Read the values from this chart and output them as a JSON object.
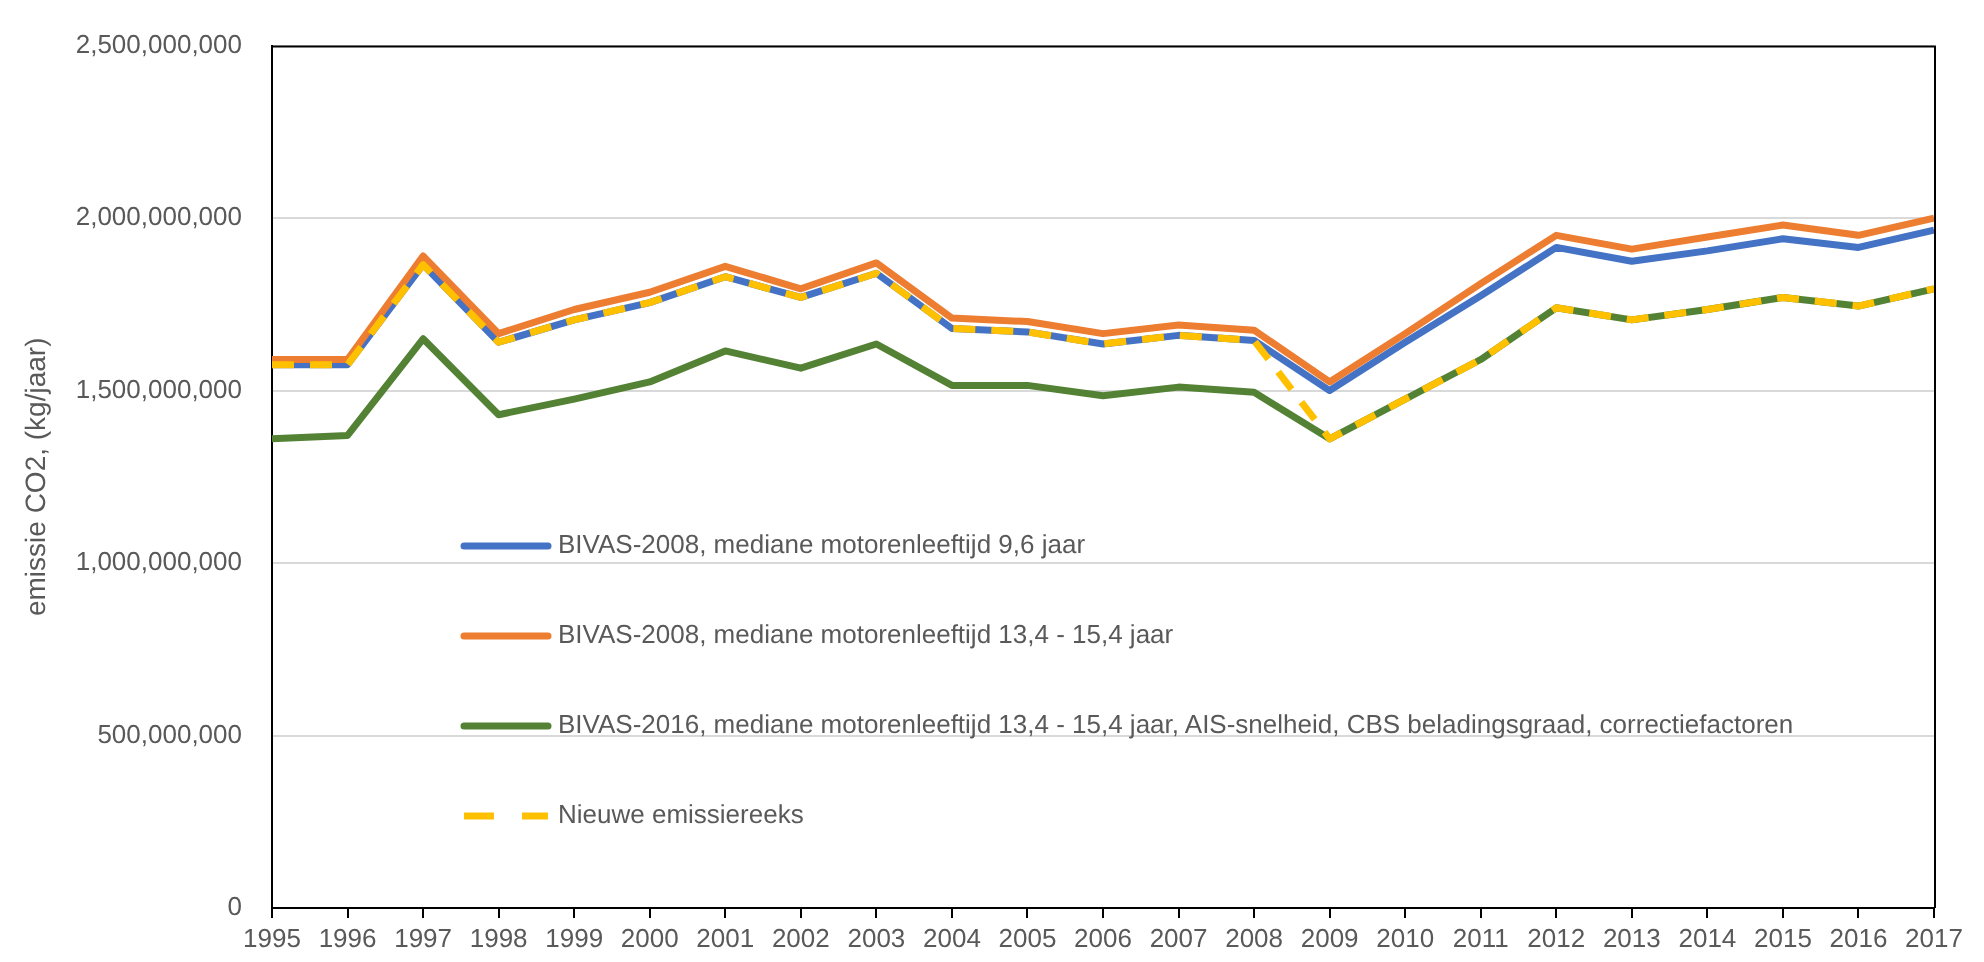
{
  "chart_data": {
    "type": "line",
    "ylabel": "emissie CO2, (kg/jaar)",
    "categories": [
      "1995",
      "1996",
      "1997",
      "1998",
      "1999",
      "2000",
      "2001",
      "2002",
      "2003",
      "2004",
      "2005",
      "2006",
      "2007",
      "2008",
      "2009",
      "2010",
      "2011",
      "2012",
      "2013",
      "2014",
      "2015",
      "2016",
      "2017"
    ],
    "series": [
      {
        "name": "BIVAS-2008, mediane motorenleeftijd 9,6 jaar",
        "color": "#4472c4",
        "values": [
          1575000000,
          1575000000,
          1865000000,
          1640000000,
          1705000000,
          1755000000,
          1830000000,
          1770000000,
          1840000000,
          1680000000,
          1670000000,
          1635000000,
          1660000000,
          1645000000,
          1500000000,
          1640000000,
          1775000000,
          1915000000,
          1875000000,
          1905000000,
          1940000000,
          1915000000,
          1965000000
        ]
      },
      {
        "name": "BIVAS-2008, mediane motorenleeftijd 13,4 - 15,4 jaar",
        "color": "#ed7d31",
        "values": [
          1590000000,
          1590000000,
          1890000000,
          1665000000,
          1735000000,
          1785000000,
          1860000000,
          1795000000,
          1870000000,
          1710000000,
          1700000000,
          1665000000,
          1690000000,
          1675000000,
          1525000000,
          1665000000,
          1810000000,
          1950000000,
          1910000000,
          1945000000,
          1980000000,
          1950000000,
          2000000000
        ]
      },
      {
        "name": "BIVAS-2016, mediane motorenleeftijd 13,4 - 15,4 jaar, AIS-snelheid, CBS beladingsgraad, correctiefactoren",
        "color": "#548235",
        "values": [
          1360000000,
          1370000000,
          1650000000,
          1430000000,
          1475000000,
          1525000000,
          1615000000,
          1565000000,
          1635000000,
          1515000000,
          1515000000,
          1485000000,
          1510000000,
          1495000000,
          1360000000,
          1475000000,
          1590000000,
          1740000000,
          1705000000,
          1735000000,
          1770000000,
          1745000000,
          1795000000
        ]
      },
      {
        "name": "Nieuwe emissiereeks",
        "color": "#ffc000",
        "line_style": "dashed",
        "values": [
          1575000000,
          1575000000,
          1865000000,
          1640000000,
          1705000000,
          1755000000,
          1830000000,
          1770000000,
          1840000000,
          1680000000,
          1670000000,
          1635000000,
          1660000000,
          1645000000,
          1360000000,
          1475000000,
          1590000000,
          1740000000,
          1705000000,
          1735000000,
          1770000000,
          1745000000,
          1795000000
        ]
      }
    ],
    "ylim": [
      0,
      2500000000
    ],
    "yticks": [
      0,
      {
        "value": 500000000,
        "label": "500,000,000"
      },
      {
        "value": 1000000000,
        "label": "1,000,000,000"
      },
      {
        "value": 1500000000,
        "label": "1,500,000,000"
      },
      {
        "value": 2000000000,
        "label": "2,000,000,000"
      },
      {
        "value": 2500000000,
        "label": "2,500,000,000"
      }
    ],
    "grid": "y",
    "legend": "bottom left",
    "marker": "none"
  }
}
